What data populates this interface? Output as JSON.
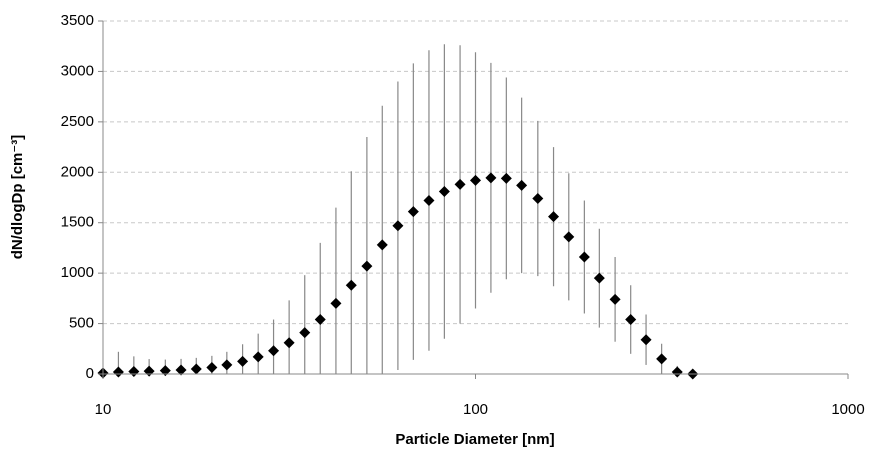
{
  "chart_data": {
    "type": "scatter",
    "xlabel": "Particle Diameter [nm]",
    "ylabel": "dN/dlogDp [cm⁻³]",
    "xscale": "log",
    "xlim": [
      10,
      1000
    ],
    "xticks": [
      10,
      100,
      1000
    ],
    "ylim": [
      0,
      3500
    ],
    "yticks": [
      0,
      500,
      1000,
      1500,
      2000,
      2500,
      3000,
      3500
    ],
    "grid": true,
    "color": "#000000",
    "error_color": "#888888",
    "x": [
      10,
      11.0,
      12.1,
      13.3,
      14.7,
      16.2,
      17.8,
      19.6,
      21.5,
      23.7,
      26.1,
      28.7,
      31.6,
      34.8,
      38.3,
      42.2,
      46.4,
      51.1,
      56.2,
      61.9,
      68.1,
      75.0,
      82.5,
      90.9,
      100,
      110,
      121,
      133,
      147,
      162,
      178,
      196,
      215,
      237,
      261,
      287,
      316,
      348,
      383
    ],
    "values": [
      10,
      20,
      25,
      28,
      33,
      40,
      50,
      65,
      90,
      125,
      170,
      230,
      310,
      410,
      540,
      700,
      880,
      1070,
      1280,
      1470,
      1610,
      1720,
      1810,
      1880,
      1920,
      1945,
      1940,
      1870,
      1740,
      1560,
      1360,
      1160,
      950,
      740,
      540,
      340,
      150,
      20,
      0
    ],
    "errors": [
      20,
      200,
      150,
      120,
      110,
      110,
      110,
      115,
      130,
      170,
      230,
      310,
      420,
      570,
      760,
      950,
      1130,
      1280,
      1380,
      1430,
      1470,
      1490,
      1460,
      1380,
      1270,
      1140,
      1000,
      870,
      770,
      690,
      630,
      560,
      490,
      420,
      340,
      250,
      150,
      60,
      30
    ]
  }
}
